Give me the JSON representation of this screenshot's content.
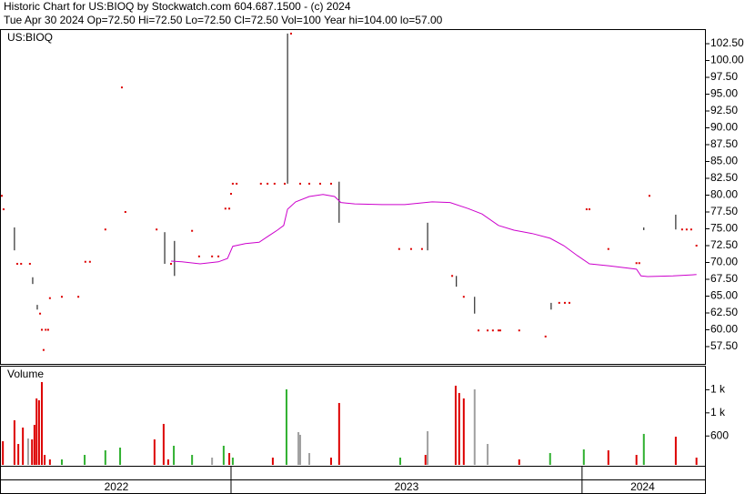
{
  "header": {
    "title": "Historic Chart for US:BIOQ by Stockwatch.com 604.687.1500 - (c) 2024",
    "quote": "Tue Apr 30 2024  Op=72.50  Hi=72.50  Lo=72.50  Cl=72.50  Vol=100  Year hi=104.00  lo=57.00"
  },
  "chart_data": [
    {
      "type": "range",
      "label": "US:BIOQ",
      "xlim": [
        2022.347,
        2024.345
      ],
      "ylim": [
        54.93,
        104.53
      ],
      "yticks": [
        {
          "value": 57.5,
          "label": "57.50"
        },
        {
          "value": 60,
          "label": "60.00"
        },
        {
          "value": 62.5,
          "label": "62.50"
        },
        {
          "value": 65,
          "label": "65.00"
        },
        {
          "value": 67.5,
          "label": "67.50"
        },
        {
          "value": 70,
          "label": "70.00"
        },
        {
          "value": 72.5,
          "label": "72.50"
        },
        {
          "value": 75,
          "label": "75.00"
        },
        {
          "value": 77.5,
          "label": "77.50"
        },
        {
          "value": 80,
          "label": "80.00"
        },
        {
          "value": 82.5,
          "label": "82.50"
        },
        {
          "value": 85,
          "label": "85.00"
        },
        {
          "value": 87.5,
          "label": "87.50"
        },
        {
          "value": 90,
          "label": "90.00"
        },
        {
          "value": 92.5,
          "label": "92.50"
        },
        {
          "value": 95,
          "label": "95.00"
        },
        {
          "value": 97.5,
          "label": "97.50"
        },
        {
          "value": 100,
          "label": "100.00"
        },
        {
          "value": 102.5,
          "label": "102.50"
        }
      ],
      "point_color": "#dd0000",
      "range_color": "#000000",
      "bars": [
        {
          "x": 2022.347,
          "high": 79.9,
          "low": 79.9
        },
        {
          "x": 2022.352,
          "high": 77.9,
          "low": 77.9
        },
        {
          "x": 2022.383,
          "high": 75.2,
          "low": 71.8
        },
        {
          "x": 2022.391,
          "high": 69.8,
          "low": 69.8
        },
        {
          "x": 2022.402,
          "high": 69.8,
          "low": 69.8
        },
        {
          "x": 2022.427,
          "high": 69.8,
          "low": 69.8
        },
        {
          "x": 2022.435,
          "high": 67.8,
          "low": 66.8
        },
        {
          "x": 2022.448,
          "high": 63.7,
          "low": 63.0
        },
        {
          "x": 2022.456,
          "high": 62.4,
          "low": 62.4
        },
        {
          "x": 2022.461,
          "high": 60.0,
          "low": 60.0
        },
        {
          "x": 2022.466,
          "high": 57.0,
          "low": 57.0
        },
        {
          "x": 2022.472,
          "high": 60.0,
          "low": 60.0
        },
        {
          "x": 2022.479,
          "high": 60.0,
          "low": 60.0
        },
        {
          "x": 2022.484,
          "high": 64.7,
          "low": 64.7
        },
        {
          "x": 2022.518,
          "high": 64.9,
          "low": 64.9
        },
        {
          "x": 2022.565,
          "high": 64.9,
          "low": 64.9
        },
        {
          "x": 2022.585,
          "high": 70.1,
          "low": 70.1
        },
        {
          "x": 2022.598,
          "high": 70.1,
          "low": 70.1
        },
        {
          "x": 2022.642,
          "high": 74.9,
          "low": 74.9
        },
        {
          "x": 2022.689,
          "high": 96.0,
          "low": 96.0
        },
        {
          "x": 2022.699,
          "high": 77.5,
          "low": 77.5
        },
        {
          "x": 2022.788,
          "high": 74.9,
          "low": 74.9
        },
        {
          "x": 2022.811,
          "high": 74.5,
          "low": 69.8
        },
        {
          "x": 2022.829,
          "high": 69.8,
          "low": 69.8
        },
        {
          "x": 2022.839,
          "high": 73.2,
          "low": 68.0
        },
        {
          "x": 2022.889,
          "high": 74.7,
          "low": 74.7
        },
        {
          "x": 2022.909,
          "high": 70.9,
          "low": 70.9
        },
        {
          "x": 2022.946,
          "high": 70.9,
          "low": 70.9
        },
        {
          "x": 2022.964,
          "high": 70.9,
          "low": 70.9
        },
        {
          "x": 2022.984,
          "high": 78.0,
          "low": 78.0
        },
        {
          "x": 2022.995,
          "high": 78.0,
          "low": 78.0
        },
        {
          "x": 2023.0,
          "high": 80.2,
          "low": 80.2
        },
        {
          "x": 2023.005,
          "high": 81.7,
          "low": 81.7
        },
        {
          "x": 2023.016,
          "high": 81.7,
          "low": 81.7
        },
        {
          "x": 2023.085,
          "high": 81.7,
          "low": 81.7
        },
        {
          "x": 2023.104,
          "high": 81.7,
          "low": 81.7
        },
        {
          "x": 2023.124,
          "high": 81.7,
          "low": 81.7
        },
        {
          "x": 2023.153,
          "high": 81.7,
          "low": 81.7
        },
        {
          "x": 2023.161,
          "high": 104.0,
          "low": 81.7
        },
        {
          "x": 2023.171,
          "high": 104.0,
          "low": 104.0
        },
        {
          "x": 2023.197,
          "high": 81.7,
          "low": 81.7
        },
        {
          "x": 2023.223,
          "high": 81.7,
          "low": 81.7
        },
        {
          "x": 2023.254,
          "high": 81.7,
          "low": 81.7
        },
        {
          "x": 2023.285,
          "high": 81.7,
          "low": 81.7
        },
        {
          "x": 2023.308,
          "high": 82.0,
          "low": 75.9
        },
        {
          "x": 2023.479,
          "high": 72.0,
          "low": 72.0
        },
        {
          "x": 2023.513,
          "high": 72.0,
          "low": 72.0
        },
        {
          "x": 2023.544,
          "high": 72.0,
          "low": 72.0
        },
        {
          "x": 2023.56,
          "high": 75.9,
          "low": 71.8
        },
        {
          "x": 2023.63,
          "high": 68.0,
          "low": 68.0
        },
        {
          "x": 2023.642,
          "high": 68.0,
          "low": 66.4
        },
        {
          "x": 2023.663,
          "high": 64.9,
          "low": 64.9
        },
        {
          "x": 2023.694,
          "high": 64.9,
          "low": 62.4
        },
        {
          "x": 2023.705,
          "high": 59.9,
          "low": 59.9
        },
        {
          "x": 2023.731,
          "high": 59.9,
          "low": 59.9
        },
        {
          "x": 2023.746,
          "high": 59.9,
          "low": 59.9
        },
        {
          "x": 2023.762,
          "high": 59.9,
          "low": 59.9
        },
        {
          "x": 2023.767,
          "high": 59.9,
          "low": 59.9
        },
        {
          "x": 2023.821,
          "high": 59.9,
          "low": 59.9
        },
        {
          "x": 2023.896,
          "high": 59.0,
          "low": 59.0
        },
        {
          "x": 2023.912,
          "high": 64.0,
          "low": 63.0
        },
        {
          "x": 2023.935,
          "high": 64.0,
          "low": 64.0
        },
        {
          "x": 2023.951,
          "high": 64.0,
          "low": 64.0
        },
        {
          "x": 2023.964,
          "high": 64.0,
          "low": 64.0
        },
        {
          "x": 2024.013,
          "high": 77.9,
          "low": 77.9
        },
        {
          "x": 2024.021,
          "high": 77.9,
          "low": 77.9
        },
        {
          "x": 2024.075,
          "high": 72.0,
          "low": 72.0
        },
        {
          "x": 2024.155,
          "high": 69.9,
          "low": 69.9
        },
        {
          "x": 2024.163,
          "high": 69.9,
          "low": 69.9
        },
        {
          "x": 2024.176,
          "high": 75.2,
          "low": 74.8
        },
        {
          "x": 2024.192,
          "high": 79.9,
          "low": 79.9
        },
        {
          "x": 2024.267,
          "high": 77.1,
          "low": 74.9
        },
        {
          "x": 2024.285,
          "high": 74.9,
          "low": 74.9
        },
        {
          "x": 2024.298,
          "high": 74.9,
          "low": 74.9
        },
        {
          "x": 2024.311,
          "high": 74.9,
          "low": 74.9
        },
        {
          "x": 2024.326,
          "high": 72.5,
          "low": 72.5
        }
      ],
      "average": {
        "color": "#cc00cc",
        "x": [
          2022.829,
          2022.86,
          2022.912,
          2022.964,
          2022.99,
          2023.005,
          2023.041,
          2023.08,
          2023.106,
          2023.132,
          2023.15,
          2023.161,
          2023.184,
          2023.223,
          2023.262,
          2023.295,
          2023.313,
          2023.352,
          2023.43,
          2023.495,
          2023.573,
          2023.624,
          2023.676,
          2023.715,
          2023.762,
          2023.806,
          2023.858,
          2023.909,
          2023.948,
          2023.987,
          2024.021,
          2024.078,
          2024.155,
          2024.168,
          2024.187,
          2024.259,
          2024.326
        ],
        "values": [
          70.2,
          70.1,
          69.8,
          70.1,
          70.6,
          72.4,
          72.8,
          73.0,
          73.9,
          74.8,
          75.5,
          77.9,
          79.0,
          79.8,
          80.1,
          79.8,
          78.9,
          78.7,
          78.6,
          78.6,
          79.0,
          78.9,
          78.0,
          77.2,
          75.5,
          74.8,
          74.3,
          73.6,
          72.5,
          71.0,
          69.8,
          69.5,
          69.0,
          68.0,
          67.9,
          68.0,
          68.2
        ]
      }
    },
    {
      "type": "bar",
      "label": "Volume",
      "xlim": [
        2022.347,
        2024.345
      ],
      "ylim": [
        100,
        1800
      ],
      "yticks": [
        {
          "value": 1400,
          "label": "1 k"
        },
        {
          "value": 1000,
          "label": "1 k"
        },
        600
      ],
      "bars": [
        {
          "x": 2022.35,
          "value": 510,
          "color": "#dd0000"
        },
        {
          "x": 2022.383,
          "value": 872,
          "color": "#dd0000"
        },
        {
          "x": 2022.394,
          "value": 462,
          "color": "#dd0000"
        },
        {
          "x": 2022.407,
          "value": 746,
          "color": "#dd0000"
        },
        {
          "x": 2022.422,
          "value": 557,
          "color": "#a0a0a0"
        },
        {
          "x": 2022.433,
          "value": 541,
          "color": "#dd0000"
        },
        {
          "x": 2022.44,
          "value": 793,
          "color": "#dd0000"
        },
        {
          "x": 2022.446,
          "value": 1250,
          "color": "#dd0000"
        },
        {
          "x": 2022.453,
          "value": 1218,
          "color": "#dd0000"
        },
        {
          "x": 2022.461,
          "value": 1533,
          "color": "#dd0000"
        },
        {
          "x": 2022.469,
          "value": 273,
          "color": "#dd0000"
        },
        {
          "x": 2022.484,
          "value": 195,
          "color": "#dd0000"
        },
        {
          "x": 2022.518,
          "value": 195,
          "color": "#30b030"
        },
        {
          "x": 2022.583,
          "value": 273,
          "color": "#30b030"
        },
        {
          "x": 2022.642,
          "value": 352,
          "color": "#30b030"
        },
        {
          "x": 2022.684,
          "value": 399,
          "color": "#30b030"
        },
        {
          "x": 2022.782,
          "value": 541,
          "color": "#dd0000"
        },
        {
          "x": 2022.808,
          "value": 809,
          "color": "#dd0000"
        },
        {
          "x": 2022.821,
          "value": 195,
          "color": "#dd0000"
        },
        {
          "x": 2022.837,
          "value": 431,
          "color": "#30b030"
        },
        {
          "x": 2022.889,
          "value": 273,
          "color": "#30b030"
        },
        {
          "x": 2022.946,
          "value": 226,
          "color": "#a0a0a0"
        },
        {
          "x": 2022.979,
          "value": 431,
          "color": "#30b030"
        },
        {
          "x": 2022.995,
          "value": 305,
          "color": "#dd0000"
        },
        {
          "x": 2023.005,
          "value": 226,
          "color": "#30b030"
        },
        {
          "x": 2023.119,
          "value": 226,
          "color": "#dd0000"
        },
        {
          "x": 2023.158,
          "value": 1407,
          "color": "#30b030"
        },
        {
          "x": 2023.192,
          "value": 667,
          "color": "#a0a0a0"
        },
        {
          "x": 2023.197,
          "value": 620,
          "color": "#a0a0a0"
        },
        {
          "x": 2023.223,
          "value": 305,
          "color": "#a0a0a0"
        },
        {
          "x": 2023.285,
          "value": 226,
          "color": "#dd0000"
        },
        {
          "x": 2023.308,
          "value": 1171,
          "color": "#dd0000"
        },
        {
          "x": 2023.482,
          "value": 226,
          "color": "#30b030"
        },
        {
          "x": 2023.554,
          "value": 273,
          "color": "#dd0000"
        },
        {
          "x": 2023.56,
          "value": 683,
          "color": "#a0a0a0"
        },
        {
          "x": 2023.64,
          "value": 1470,
          "color": "#dd0000"
        },
        {
          "x": 2023.65,
          "value": 1344,
          "color": "#dd0000"
        },
        {
          "x": 2023.663,
          "value": 1250,
          "color": "#dd0000"
        },
        {
          "x": 2023.694,
          "value": 1407,
          "color": "#a0a0a0"
        },
        {
          "x": 2023.731,
          "value": 462,
          "color": "#a0a0a0"
        },
        {
          "x": 2023.821,
          "value": 195,
          "color": "#dd0000"
        },
        {
          "x": 2023.909,
          "value": 305,
          "color": "#30b030"
        },
        {
          "x": 2024.005,
          "value": 368,
          "color": "#30b030"
        },
        {
          "x": 2024.075,
          "value": 352,
          "color": "#dd0000"
        },
        {
          "x": 2024.155,
          "value": 273,
          "color": "#dd0000"
        },
        {
          "x": 2024.176,
          "value": 636,
          "color": "#30b030"
        },
        {
          "x": 2024.267,
          "value": 588,
          "color": "#dd0000"
        },
        {
          "x": 2024.326,
          "value": 226,
          "color": "#dd0000"
        }
      ],
      "year_bounds": [
        2023,
        2024
      ],
      "year_labels": [
        "2022",
        "2023",
        "2024"
      ]
    }
  ]
}
